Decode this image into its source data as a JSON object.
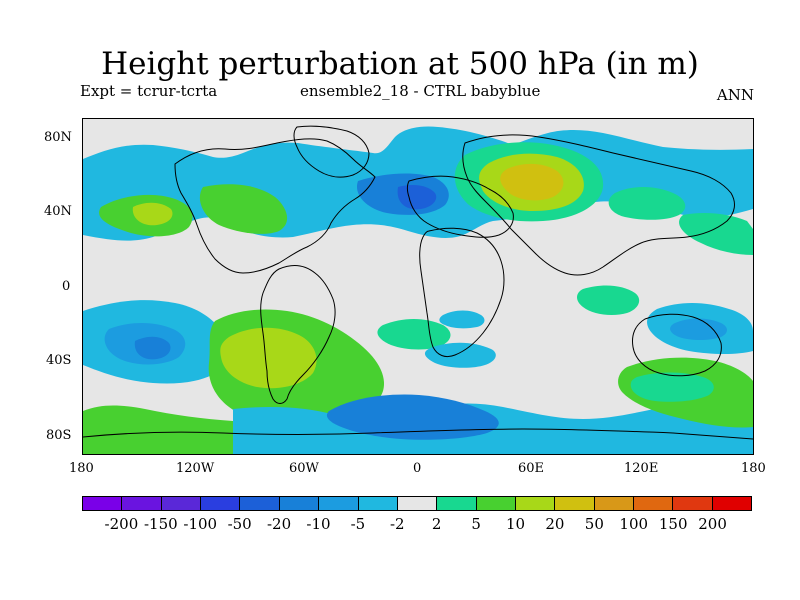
{
  "title": "Height perturbation at 500 hPa (in m)",
  "subtitle_left": "Expt = tcrur-tcrta",
  "subtitle_center": "ensemble2_18 - CTRL babyblue",
  "subtitle_right": "ANN",
  "y_ticks": [
    {
      "label": "80N"
    },
    {
      "label": "40N"
    },
    {
      "label": "0"
    },
    {
      "label": "40S"
    },
    {
      "label": "80S"
    }
  ],
  "x_ticks": [
    {
      "label": "180"
    },
    {
      "label": "120W"
    },
    {
      "label": "60W"
    },
    {
      "label": "0"
    },
    {
      "label": "60E"
    },
    {
      "label": "120E"
    },
    {
      "label": "180"
    }
  ],
  "legend_colors": [
    "#7a00e8",
    "#6a14e0",
    "#5a28d8",
    "#2a3ee0",
    "#1c60d8",
    "#1880d8",
    "#1c9ce0",
    "#20b8e0",
    "#e6e6e6",
    "#18d890",
    "#48d030",
    "#a8d818",
    "#d0c010",
    "#d89818",
    "#e06810",
    "#e03810",
    "#e00000"
  ],
  "legend_labels": [
    "-200",
    "-150",
    "-100",
    "-50",
    "-20",
    "-10",
    "-5",
    "-2",
    "2",
    "5",
    "10",
    "20",
    "50",
    "100",
    "150",
    "200"
  ]
}
